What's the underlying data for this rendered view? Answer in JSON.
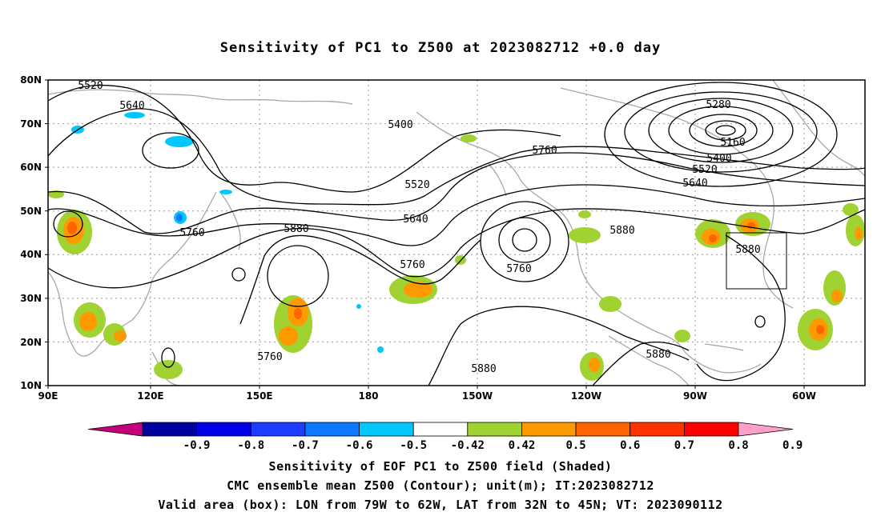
{
  "title": "Sensitivity of PC1 to Z500 at 2023082712 +0.0 day",
  "axes": {
    "lat_labels": [
      "80N",
      "70N",
      "60N",
      "50N",
      "40N",
      "30N",
      "20N",
      "10N"
    ],
    "lon_labels": [
      "90E",
      "120E",
      "150E",
      "180",
      "150W",
      "120W",
      "90W",
      "60W"
    ]
  },
  "contour_labels": [
    "5520",
    "5640",
    "5400",
    "5280",
    "5160",
    "5400",
    "5520",
    "5640",
    "5760",
    "5520",
    "5640",
    "5760",
    "5880",
    "5760",
    "5760",
    "5880",
    "5760",
    "5880",
    "5880",
    "5880",
    "5760"
  ],
  "colorbar": {
    "labels": [
      "-0.9",
      "-0.8",
      "-0.7",
      "-0.6",
      "-0.5",
      "-0.42",
      "0.42",
      "0.5",
      "0.6",
      "0.7",
      "0.8",
      "0.9"
    ],
    "colors": [
      "#c4007a",
      "#00009f",
      "#0000e6",
      "#1e3cff",
      "#0a78ff",
      "#00c8ff",
      "#ffffff",
      "#a0d232",
      "#ff9900",
      "#ff6400",
      "#ff3200",
      "#ff0000",
      "#ffa0c8"
    ]
  },
  "footer": {
    "line1": "Sensitivity of EOF PC1 to Z500 field (Shaded)",
    "line2": "CMC ensemble mean Z500 (Contour); unit(m); IT:2023082712",
    "line3": "Valid area (box): LON from 79W to 62W, LAT from 32N to 45N; VT: 2023090112"
  }
}
